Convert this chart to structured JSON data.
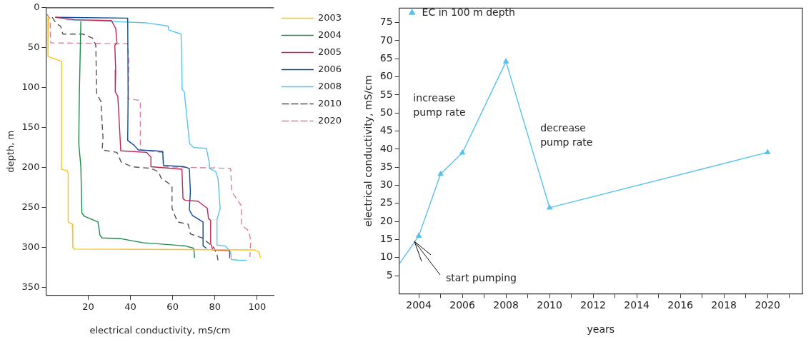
{
  "chart_data": [
    {
      "type": "line",
      "xlabel": "electrical conductivity, mS/cm",
      "ylabel": "depth, m",
      "xlim": [
        0,
        108
      ],
      "ylim": [
        360,
        0
      ],
      "xticks": [
        20,
        40,
        60,
        80,
        100
      ],
      "yticks": [
        0,
        50,
        100,
        150,
        200,
        250,
        300,
        350
      ],
      "legend": "top right",
      "marker": "none",
      "grid": false,
      "series": [
        {
          "name": "2003",
          "color": "#ffc20e",
          "x": [
            1.2,
            0.9,
            7.3,
            7.3,
            10,
            10.5,
            10.5,
            12.5,
            12.7,
            13.5,
            99,
            101,
            101.6
          ],
          "values": [
            12,
            61,
            67,
            202,
            204,
            207,
            268,
            271,
            300,
            302,
            303,
            306,
            313
          ]
        },
        {
          "name": "2004",
          "color": "#1a8a4a",
          "x": [
            16.5,
            15.8,
            15.5,
            16.5,
            17,
            18.2,
            24.6,
            25.6,
            26.6,
            35.6,
            45.7,
            66,
            70,
            70.4
          ],
          "values": [
            17,
            108,
            169,
            199,
            257,
            261,
            268,
            285,
            288,
            289,
            294,
            298,
            301,
            313
          ]
        },
        {
          "name": "2005",
          "color": "#c0254f",
          "x": [
            4.4,
            13.5,
            31,
            33,
            33.6,
            32.6,
            33,
            32.8,
            34,
            34.6,
            35.4,
            47.7,
            49.7,
            49.7,
            64.4,
            64.9,
            66,
            72,
            76.4,
            77,
            78,
            78,
            79,
            87,
            87
          ],
          "values": [
            12,
            15,
            16,
            26,
            44,
            47,
            78,
            105,
            111,
            138,
            179,
            181,
            187,
            199,
            202,
            239,
            241,
            242,
            251,
            264,
            266,
            295,
            303,
            304,
            313
          ]
        },
        {
          "name": "2006",
          "color": "#0b4a9a",
          "x": [
            4.4,
            38.7,
            38.9,
            38.7,
            41.7,
            43.7,
            51.8,
            55.3,
            55.6,
            65.4,
            67.9,
            68.4,
            67.9,
            69.4,
            74.4,
            74.4,
            76
          ],
          "values": [
            12,
            13,
            108,
            166,
            172,
            178,
            179,
            180,
            197,
            199,
            201,
            230,
            253,
            260,
            268,
            298,
            301
          ]
        },
        {
          "name": "2008",
          "color": "#56c3f0",
          "x": [
            9.5,
            29.6,
            47.8,
            57.9,
            58.2,
            64,
            64.5,
            65.5,
            67,
            68,
            70,
            76,
            77.5,
            77.4,
            80.4,
            81.5,
            82.5,
            81,
            81,
            85,
            87.5,
            87.8,
            91,
            95
          ],
          "values": [
            15,
            17,
            19,
            23,
            28,
            33,
            102,
            105,
            144,
            170,
            175,
            176,
            196,
            201,
            205,
            214,
            251,
            265,
            297,
            298,
            306,
            315,
            316,
            316
          ]
        },
        {
          "name": "2010",
          "color": "#555555",
          "line_style": "dashed",
          "x": [
            2.9,
            4.9,
            6.9,
            8,
            17.5,
            22,
            23.6,
            24,
            26,
            27,
            26.6,
            33.6,
            35.6,
            40.7,
            49.7,
            53.2,
            54.7,
            57.7,
            59.7,
            59.7,
            62.3,
            67.4,
            68.4,
            74,
            79.5,
            81,
            81.5
          ],
          "values": [
            12,
            20,
            23,
            33,
            33,
            38,
            47,
            108,
            117,
            163,
            178,
            181,
            193,
            199,
            201,
            205,
            214,
            219,
            223,
            251,
            268,
            271,
            283,
            288,
            300,
            309,
            316
          ]
        },
        {
          "name": "2020",
          "color": "#d98098",
          "line_style": "dashed",
          "x": [
            0.4,
            1.9,
            2.2,
            38.7,
            39.2,
            38.9,
            44.7,
            44.7,
            55.3,
            55.8,
            87.3,
            87.5,
            88,
            92.6,
            92.6,
            96,
            97,
            96.6
          ],
          "values": [
            8,
            14,
            44,
            45,
            65,
            114,
            116,
            178,
            181,
            199,
            201,
            202,
            230,
            248,
            272,
            279,
            291,
            312
          ]
        }
      ]
    },
    {
      "type": "line",
      "xlabel": "years",
      "ylabel": "electrical conductivity, mS/cm",
      "xlim": [
        2003.1,
        2021.6
      ],
      "ylim": [
        0,
        79
      ],
      "xticks": [
        2004,
        {
          "value": 2005,
          "label": null
        },
        2006,
        {
          "value": 2007,
          "label": null
        },
        2008,
        {
          "value": 2009,
          "label": null
        },
        2010,
        {
          "value": 2011,
          "label": null
        },
        2012,
        {
          "value": 2013,
          "label": null
        },
        2014,
        {
          "value": 2015,
          "label": null
        },
        2016,
        {
          "value": 2017,
          "label": null
        },
        2018,
        {
          "value": 2019,
          "label": null
        },
        2020,
        {
          "value": 2021,
          "label": null
        }
      ],
      "yticks": [
        5,
        10,
        15,
        20,
        25,
        30,
        35,
        40,
        45,
        50,
        55,
        60,
        65,
        70,
        75
      ],
      "legend": "top left",
      "marker": "triangle",
      "grid": false,
      "series": [
        {
          "name": "EC in 100 m depth",
          "color": "#56c0ee",
          "x": [
            2004,
            2005,
            2006,
            2008,
            2010,
            2020
          ],
          "values": [
            16,
            33.1,
            39,
            64.2,
            23.8,
            39.1
          ]
        },
        {
          "color": "#56c0ee",
          "marker": "none",
          "x": [
            2003.1,
            2004
          ],
          "values": [
            8.2,
            16
          ]
        }
      ],
      "annotations": [
        "increase\npump rate",
        "decrease\npump rate",
        {
          "text": "start pumping",
          "x": 2003.8,
          "y": 14.5
        }
      ]
    }
  ]
}
